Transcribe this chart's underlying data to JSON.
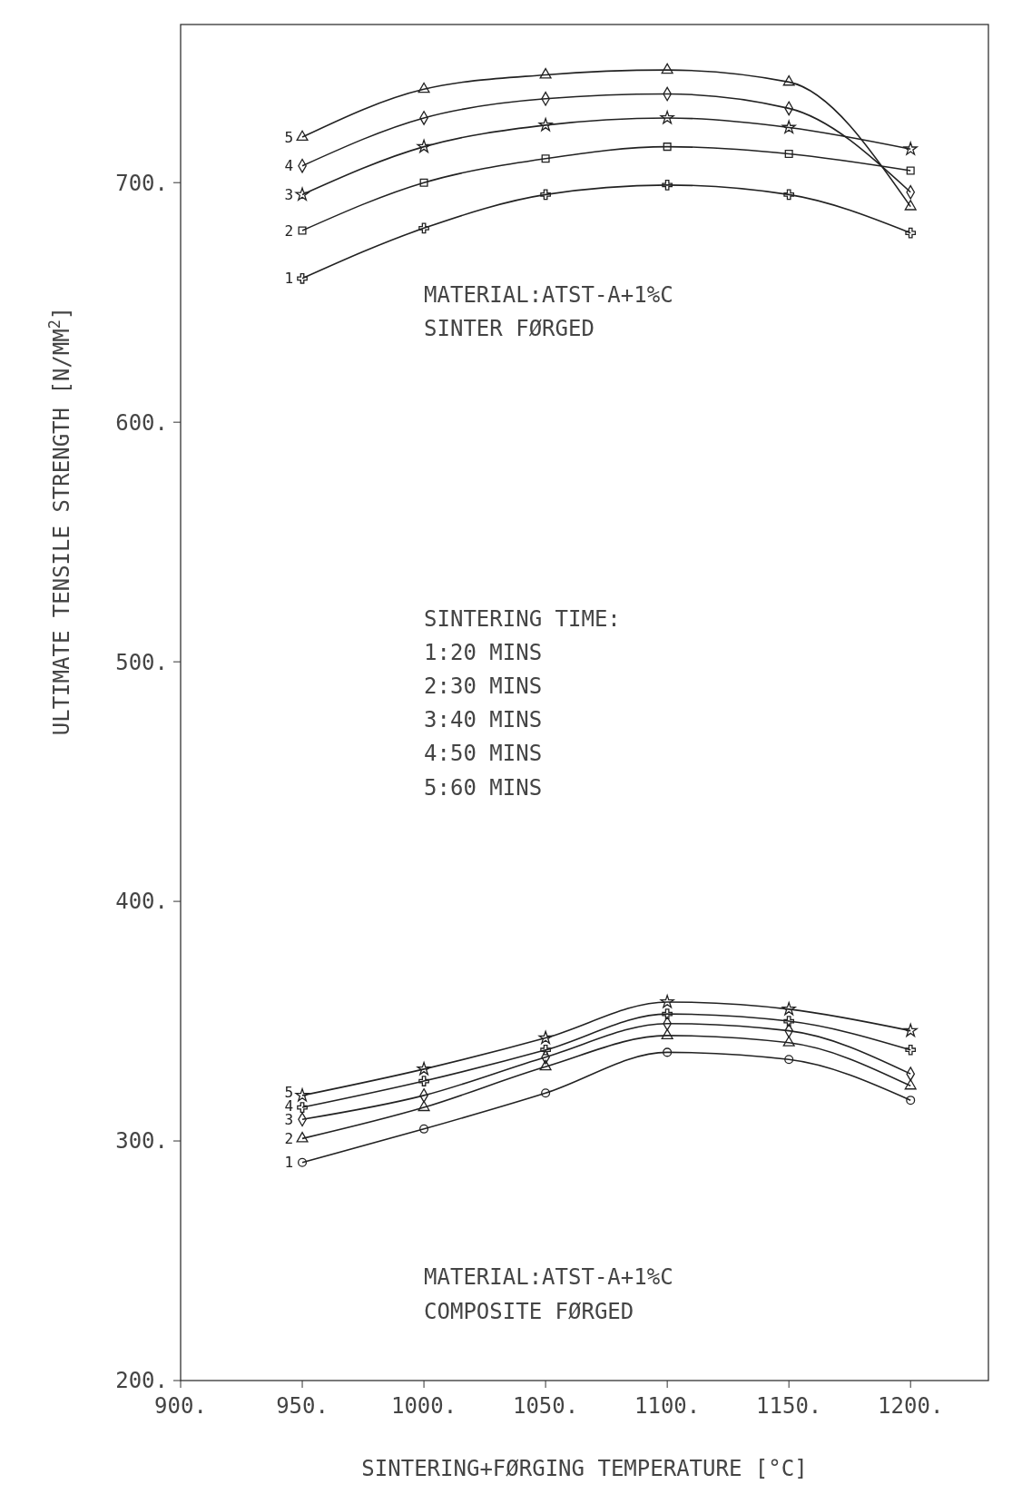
{
  "chart_data": {
    "type": "line",
    "xlabel": "SINTERING+FØRGING TEMPERATURE [°C]",
    "ylabel": "ULTIMATE TENSILE STRENGTH [N/MM$^{2}$]",
    "x": [
      950,
      1000,
      1050,
      1100,
      1150,
      1200
    ],
    "xlim": [
      900,
      1232
    ],
    "ylim": [
      200,
      766
    ],
    "xticks": [
      {
        "value": 900,
        "label": "900."
      },
      {
        "value": 950,
        "label": "950."
      },
      {
        "value": 1000,
        "label": "1000."
      },
      {
        "value": 1050,
        "label": "1050."
      },
      {
        "value": 1100,
        "label": "1100."
      },
      {
        "value": 1150,
        "label": "1150."
      },
      {
        "value": 1200,
        "label": "1200."
      }
    ],
    "yticks": [
      {
        "value": 200,
        "label": "200."
      },
      {
        "value": 300,
        "label": "300."
      },
      {
        "value": 400,
        "label": "400."
      },
      {
        "value": 500,
        "label": "500."
      },
      {
        "value": 600,
        "label": "600."
      },
      {
        "value": 700,
        "label": "700."
      }
    ],
    "grid": false,
    "line_style": "solid",
    "series": [
      {
        "name": "1",
        "color": "#222222",
        "marker": "cross",
        "values": [
          660,
          681,
          695,
          699,
          695,
          679
        ]
      },
      {
        "name": "2",
        "color": "#222222",
        "marker": "square",
        "values": [
          680,
          700,
          710,
          715,
          712,
          705
        ]
      },
      {
        "name": "3",
        "color": "#222222",
        "marker": "star",
        "values": [
          695,
          715,
          724,
          727,
          723,
          714
        ]
      },
      {
        "name": "4",
        "color": "#222222",
        "marker": "diamond",
        "values": [
          707,
          727,
          735,
          737,
          731,
          696
        ]
      },
      {
        "name": "5",
        "color": "#222222",
        "marker": "triangle",
        "values": [
          719,
          739,
          745,
          747,
          742,
          690
        ]
      },
      {
        "name": "1",
        "color": "#222222",
        "marker": "circle",
        "values": [
          291,
          305,
          320,
          337,
          334,
          317
        ]
      },
      {
        "name": "2",
        "color": "#222222",
        "marker": "triangle",
        "values": [
          301,
          314,
          331,
          344,
          341,
          323
        ]
      },
      {
        "name": "3",
        "color": "#222222",
        "marker": "diamond",
        "values": [
          309,
          319,
          335,
          349,
          346,
          328
        ]
      },
      {
        "name": "4",
        "color": "#222222",
        "marker": "cross",
        "values": [
          314,
          325,
          338,
          353,
          350,
          338
        ]
      },
      {
        "name": "5",
        "color": "#222222",
        "marker": "star",
        "values": [
          319,
          330,
          343,
          358,
          355,
          346
        ]
      }
    ],
    "annotations": [
      "MATERIAL:ATST-A+1%C\nSINTER FØRGED",
      "SINTERING TIME:\n1:20 MINS\n2:30 MINS\n3:40 MINS\n4:50 MINS\n5:60 MINS",
      "MATERIAL:ATST-A+1%C\nCOMPOSITE FØRGED"
    ]
  }
}
